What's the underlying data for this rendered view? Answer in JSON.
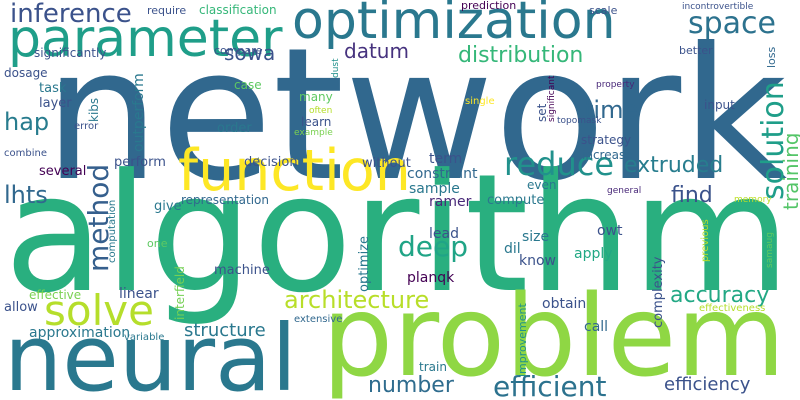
{
  "words": [
    {
      "text": "network",
      "color": "#31688e"
    },
    {
      "text": "algorithm",
      "color": "#29af7f"
    },
    {
      "text": "problem",
      "color": "#8fd744"
    },
    {
      "text": "neural",
      "color": "#2a788e"
    },
    {
      "text": "optimization",
      "color": "#2a788e"
    },
    {
      "text": "parameter",
      "color": "#1f9e89"
    },
    {
      "text": "function",
      "color": "#fde725"
    },
    {
      "text": "solve",
      "color": "#b5de2b"
    },
    {
      "text": "inference",
      "color": "#3b528b"
    },
    {
      "text": "space",
      "color": "#2c728e"
    },
    {
      "text": "reduce",
      "color": "#21918c"
    },
    {
      "text": "solution",
      "color": "#1f9e89"
    },
    {
      "text": "training",
      "color": "#54c568"
    },
    {
      "text": "datum",
      "color": "#46327e"
    },
    {
      "text": "distribution",
      "color": "#35b779"
    },
    {
      "text": "sowa",
      "color": "#3b528b"
    },
    {
      "text": "time",
      "color": "#31688e"
    },
    {
      "text": "hap",
      "color": "#287c8e"
    },
    {
      "text": "method",
      "color": "#355f8d"
    },
    {
      "text": "lhts",
      "color": "#31688e"
    },
    {
      "text": "extruded",
      "color": "#287d8e"
    },
    {
      "text": "find",
      "color": "#3b528b"
    },
    {
      "text": "deep",
      "color": "#20a486"
    },
    {
      "text": "architecture",
      "color": "#b8de29"
    },
    {
      "text": "accuracy",
      "color": "#22a884"
    },
    {
      "text": "structure",
      "color": "#2a788e"
    },
    {
      "text": "number",
      "color": "#2f6c8e"
    },
    {
      "text": "efficient",
      "color": "#2c728e"
    },
    {
      "text": "efficiency",
      "color": "#3b528b"
    },
    {
      "text": "approximation",
      "color": "#2a788e"
    },
    {
      "text": "allow",
      "color": "#3b528b"
    },
    {
      "text": "effective",
      "color": "#7ad151"
    },
    {
      "text": "linear",
      "color": "#3b528b"
    },
    {
      "text": "interfield",
      "color": "#75d054"
    },
    {
      "text": "machine",
      "color": "#3b528b"
    },
    {
      "text": "give",
      "color": "#2a788e"
    },
    {
      "text": "representation",
      "color": "#31688e"
    },
    {
      "text": "computation",
      "color": "#2a788e"
    },
    {
      "text": "one",
      "color": "#5ec962"
    },
    {
      "text": "ramer",
      "color": "#482878"
    },
    {
      "text": "lead",
      "color": "#3b528b"
    },
    {
      "text": "optimize",
      "color": "#2a788e"
    },
    {
      "text": "dil",
      "color": "#2a788e"
    },
    {
      "text": "size",
      "color": "#2a788e"
    },
    {
      "text": "know",
      "color": "#3b528b"
    },
    {
      "text": "planqk",
      "color": "#440154"
    },
    {
      "text": "compute",
      "color": "#2a788e"
    },
    {
      "text": "sample",
      "color": "#2a788e"
    },
    {
      "text": "owt",
      "color": "#3b528b"
    },
    {
      "text": "apply",
      "color": "#22a884"
    },
    {
      "text": "obtain",
      "color": "#3b528b"
    },
    {
      "text": "call",
      "color": "#31688e"
    },
    {
      "text": "complexity",
      "color": "#3b528b"
    },
    {
      "text": "improvement",
      "color": "#21918c"
    },
    {
      "text": "extensive",
      "color": "#31688e"
    },
    {
      "text": "variable",
      "color": "#2a788e"
    },
    {
      "text": "train",
      "color": "#2a788e"
    },
    {
      "text": "effectiveness",
      "color": "#b5de2b"
    },
    {
      "text": "previous",
      "color": "#b5de2b"
    },
    {
      "text": "samaug",
      "color": "#5ec962"
    },
    {
      "text": "memory",
      "color": "#bddf26"
    },
    {
      "text": "general",
      "color": "#482878"
    },
    {
      "text": "even",
      "color": "#2a788e"
    },
    {
      "text": "increase",
      "color": "#31688e"
    },
    {
      "text": "term",
      "color": "#3b528b"
    },
    {
      "text": "constraint",
      "color": "#31688e"
    },
    {
      "text": "without",
      "color": "#3b528b"
    },
    {
      "text": "decision",
      "color": "#3b528b"
    },
    {
      "text": "several",
      "color": "#440154"
    },
    {
      "text": "perform",
      "color": "#3b528b"
    },
    {
      "text": "combine",
      "color": "#3b528b"
    },
    {
      "text": "error",
      "color": "#3b528b"
    },
    {
      "text": "order",
      "color": "#2a788e"
    },
    {
      "text": "outperform",
      "color": "#2a788e"
    },
    {
      "text": "kibs",
      "color": "#2a788e"
    },
    {
      "text": "task",
      "color": "#2a788e"
    },
    {
      "text": "layer",
      "color": "#3b528b"
    },
    {
      "text": "dosage",
      "color": "#3b528b"
    },
    {
      "text": "significantly",
      "color": "#3b528b"
    },
    {
      "text": "require",
      "color": "#3b528b"
    },
    {
      "text": "classification",
      "color": "#35b779"
    },
    {
      "text": "compare",
      "color": "#3b528b"
    },
    {
      "text": "case",
      "color": "#5ec962"
    },
    {
      "text": "many",
      "color": "#5ec962"
    },
    {
      "text": "learn",
      "color": "#3b528b"
    },
    {
      "text": "example",
      "color": "#7ad151"
    },
    {
      "text": "often",
      "color": "#b5de2b"
    },
    {
      "text": "dust",
      "color": "#21918c"
    },
    {
      "text": "prediction",
      "color": "#440154"
    },
    {
      "text": "scale",
      "color": "#3b528b"
    },
    {
      "text": "incontrovertible",
      "color": "#3b528b"
    },
    {
      "text": "better",
      "color": "#3b528b"
    },
    {
      "text": "loss",
      "color": "#31688e"
    },
    {
      "text": "property",
      "color": "#482878"
    },
    {
      "text": "input",
      "color": "#3b528b"
    },
    {
      "text": "single",
      "color": "#fde725"
    },
    {
      "text": "set",
      "color": "#3b528b"
    },
    {
      "text": "significant",
      "color": "#440154"
    },
    {
      "text": "topomask",
      "color": "#3b528b"
    },
    {
      "text": "strategy",
      "color": "#3b528b"
    }
  ]
}
